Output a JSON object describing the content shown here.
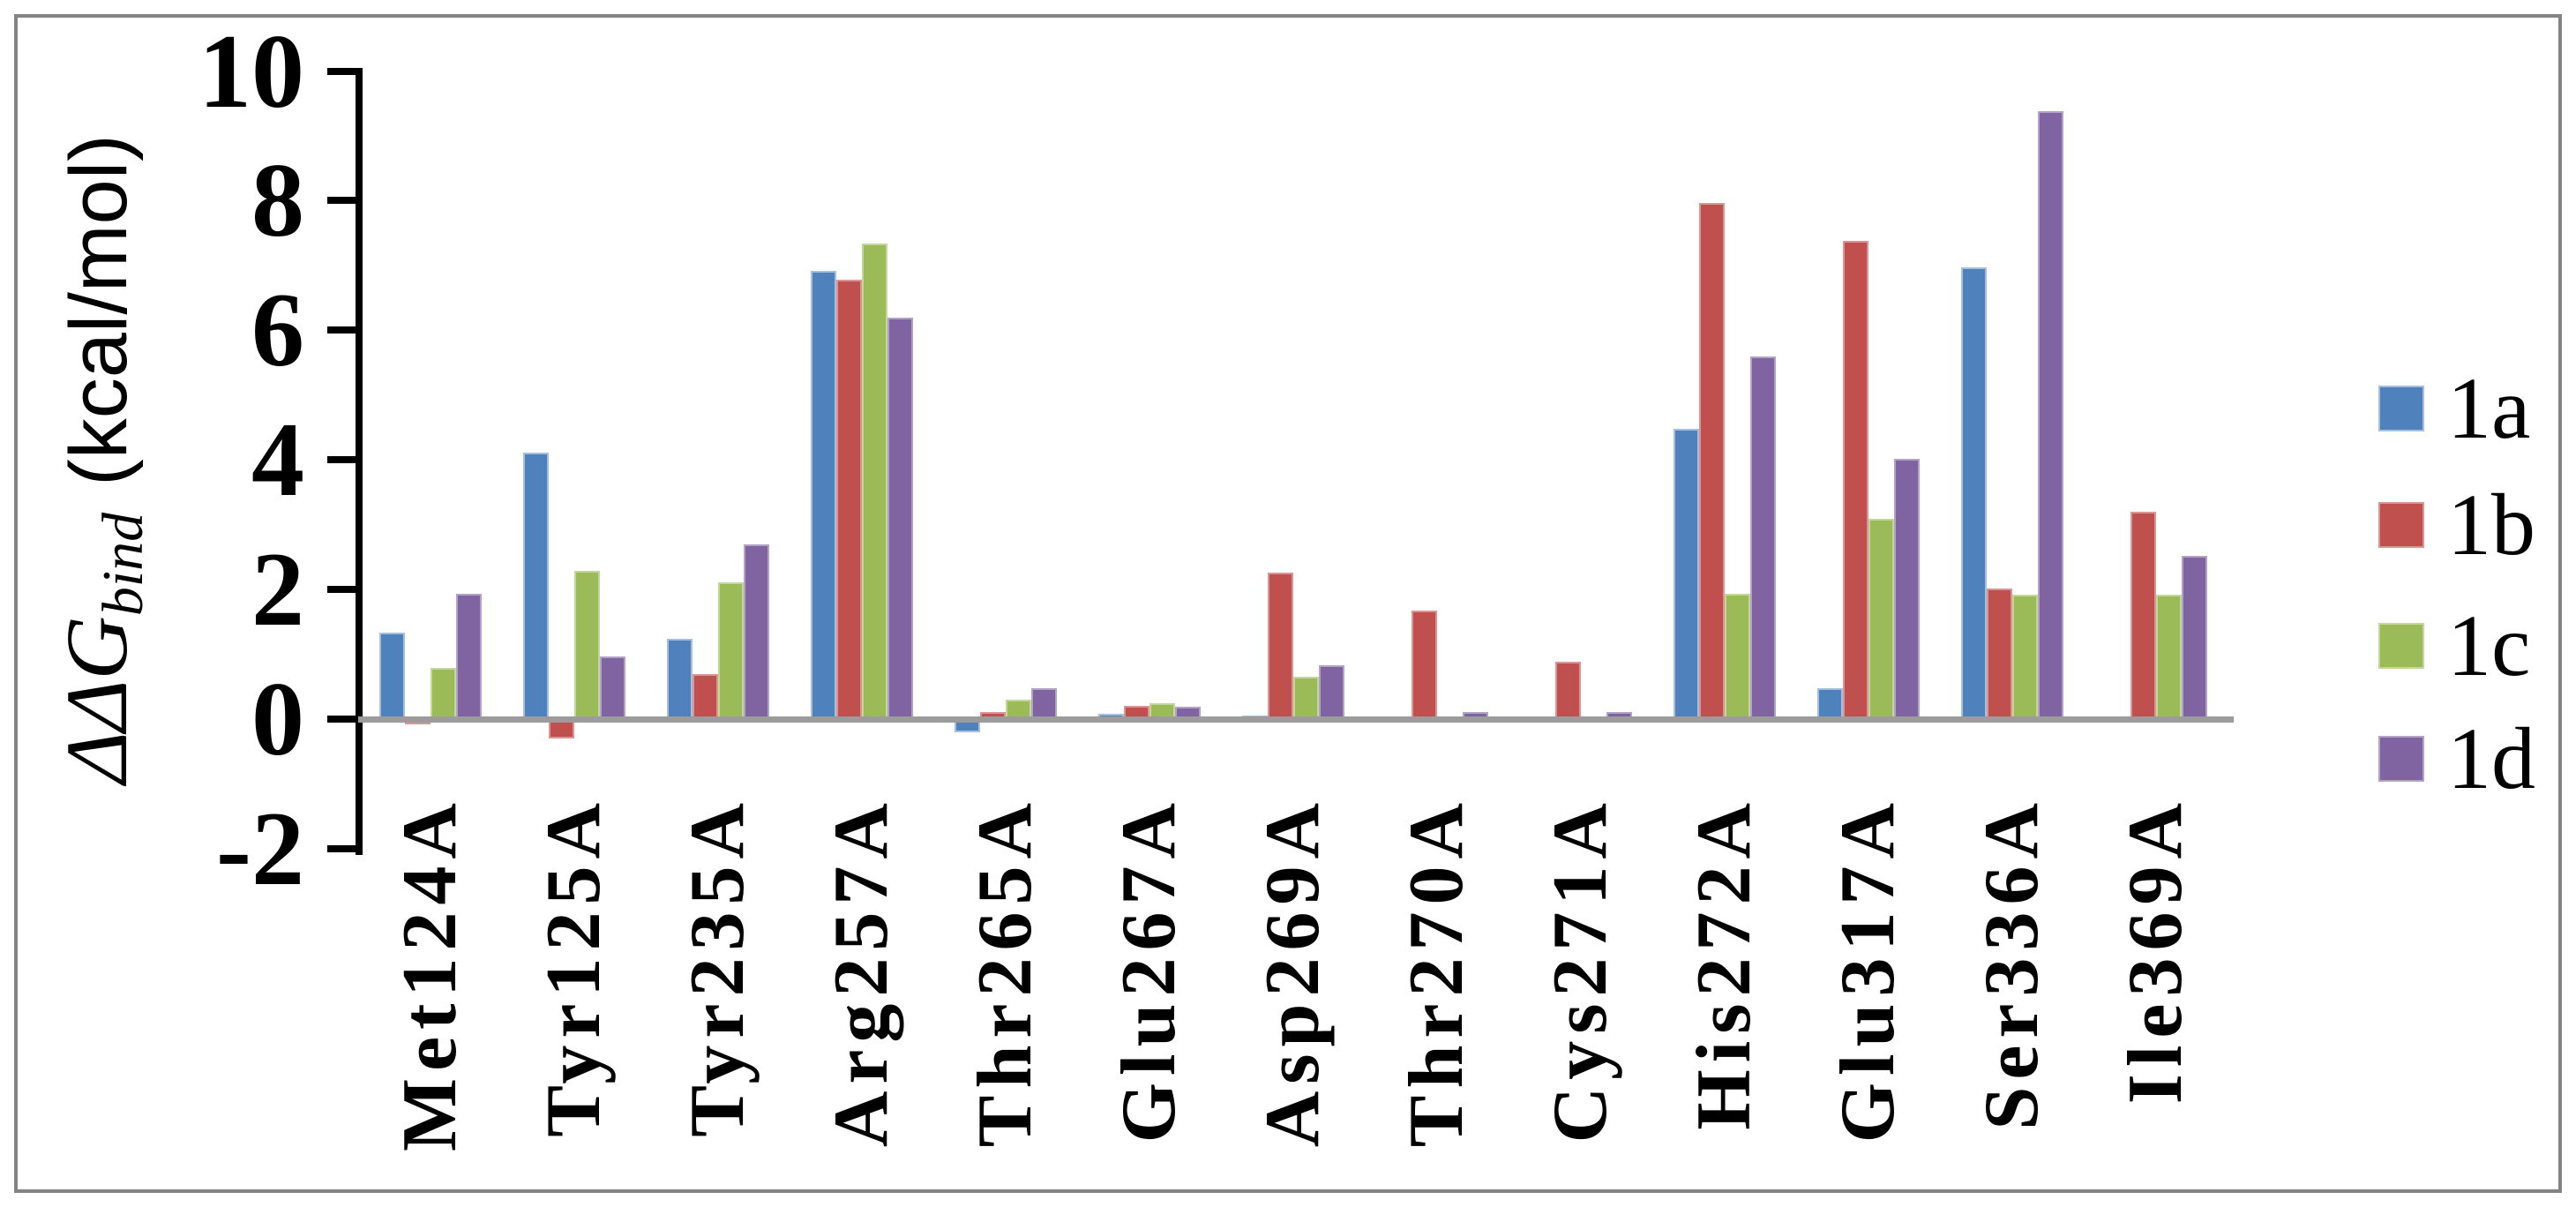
{
  "frame": {
    "border_color": "#848484",
    "background": "#FFFFFF",
    "baseline_color": "#9C9C9C"
  },
  "y_axis": {
    "label_main": "ΔΔG",
    "label_sub": "bind",
    "label_units": "(kcal/mol)",
    "tick_labels": [
      "10",
      "8",
      "6",
      "4",
      "2",
      "0",
      "-2"
    ]
  },
  "legend": {
    "position": "right",
    "items": [
      {
        "label": "1a",
        "color": "#4F81BD"
      },
      {
        "label": "1b",
        "color": "#C0504D"
      },
      {
        "label": "1c",
        "color": "#9BBB59"
      },
      {
        "label": "1d",
        "color": "#8064A2"
      }
    ]
  },
  "chart_data": {
    "type": "bar",
    "title": "",
    "xlabel": "",
    "ylabel": "ΔΔG_bind (kcal/mol)",
    "ylim": [
      -2,
      10
    ],
    "yticks": [
      10,
      8,
      6,
      4,
      2,
      0,
      -2
    ],
    "grid": false,
    "legend_position": "right",
    "categories": [
      "Met124A",
      "Tyr125A",
      "Tyr235A",
      "Arg257A",
      "Thr265A",
      "Glu267A",
      "Asp269A",
      "Thr270A",
      "Cys271A",
      "His272A",
      "Glu317A",
      "Ser336A",
      "Ile369A"
    ],
    "series": [
      {
        "name": "1a",
        "color": "#4F81BD",
        "border_color": "#A7BFDE",
        "values": [
          1.34,
          4.11,
          1.24,
          6.92,
          -0.2,
          0.08,
          0.06,
          0,
          0,
          4.48,
          0.47,
          6.97,
          0
        ]
      },
      {
        "name": "1b",
        "color": "#C0504D",
        "border_color": "#D99694",
        "values": [
          -0.08,
          -0.3,
          0.7,
          6.78,
          0.11,
          0.2,
          2.26,
          1.67,
          0.88,
          7.97,
          7.38,
          2.02,
          3.2
        ]
      },
      {
        "name": "1c",
        "color": "#9BBB59",
        "border_color": "#C3D69B",
        "values": [
          0.79,
          2.29,
          2.11,
          7.34,
          0.3,
          0.25,
          0.66,
          0,
          0,
          1.94,
          3.09,
          1.92,
          1.92
        ]
      },
      {
        "name": "1d",
        "color": "#8064A2",
        "border_color": "#B3A2C7",
        "values": [
          1.93,
          0.96,
          2.7,
          6.2,
          0.48,
          0.19,
          0.83,
          0.11,
          0.11,
          5.6,
          4.02,
          9.38,
          2.52
        ]
      }
    ]
  }
}
